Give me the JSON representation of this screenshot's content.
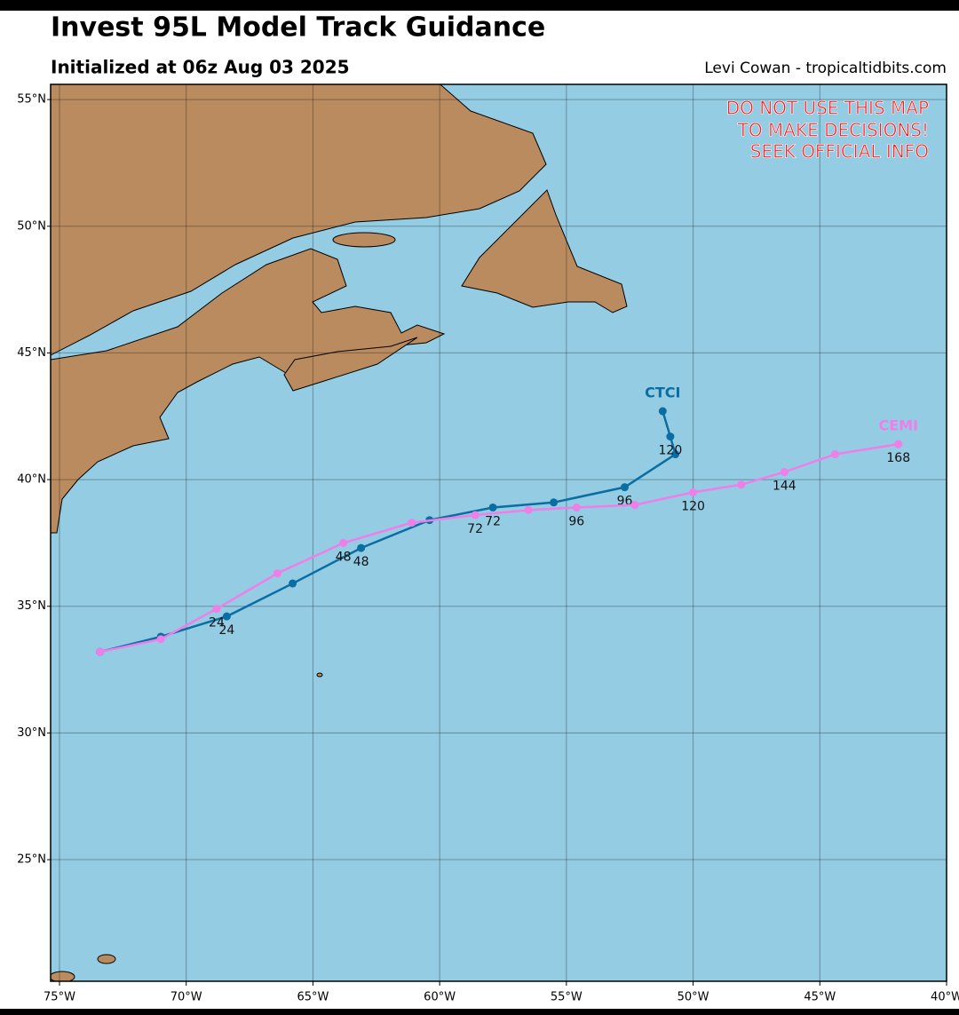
{
  "chart_data": {
    "type": "map",
    "title": "Invest 95L Model Track Guidance",
    "subtitle": "Initialized at 06z Aug 03 2025",
    "credit": "Levi Cowan - tropicaltidbits.com",
    "warning": [
      "DO NOT USE THIS MAP",
      "TO MAKE DECISIONS!",
      "SEEK OFFICIAL INFO"
    ],
    "xlim": [
      -75.35,
      -40
    ],
    "ylim": [
      20.2,
      55.6
    ],
    "xticks": [
      {
        "value": -75,
        "label": "75°W"
      },
      {
        "value": -70,
        "label": "70°W"
      },
      {
        "value": -65,
        "label": "65°W"
      },
      {
        "value": -60,
        "label": "60°W"
      },
      {
        "value": -55,
        "label": "55°W"
      },
      {
        "value": -50,
        "label": "50°W"
      },
      {
        "value": -45,
        "label": "45°W"
      },
      {
        "value": -40,
        "label": "40°W"
      }
    ],
    "yticks": [
      {
        "value": 25,
        "label": "25°N"
      },
      {
        "value": 30,
        "label": "30°N"
      },
      {
        "value": 35,
        "label": "35°N"
      },
      {
        "value": 40,
        "label": "40°N"
      },
      {
        "value": 45,
        "label": "45°N"
      },
      {
        "value": 50,
        "label": "50°N"
      },
      {
        "value": 55,
        "label": "55°N"
      }
    ],
    "grid": true,
    "series": [
      {
        "name": "CTCI",
        "color": "#0b6ea3",
        "lon": [
          -73.4,
          -71.0,
          -68.4,
          -65.8,
          -63.1,
          -60.4,
          -57.9,
          -55.5,
          -52.7,
          -50.7,
          -50.9,
          -51.2
        ],
        "lat": [
          33.2,
          33.8,
          34.6,
          35.9,
          37.3,
          38.4,
          38.9,
          39.1,
          39.7,
          41.0,
          41.7,
          42.7
        ],
        "hour_labels": [
          null,
          null,
          24,
          null,
          48,
          null,
          72,
          null,
          96,
          null,
          120,
          null
        ]
      },
      {
        "name": "CEMI",
        "color": "#f07ee8",
        "lon": [
          -73.4,
          -71.0,
          -68.8,
          -66.4,
          -63.8,
          -61.1,
          -58.6,
          -56.5,
          -54.6,
          -52.3,
          -50.0,
          -48.1,
          -46.4,
          -44.4,
          -41.9
        ],
        "lat": [
          33.2,
          33.7,
          34.9,
          36.3,
          37.5,
          38.3,
          38.6,
          38.8,
          38.9,
          39.0,
          39.5,
          39.8,
          40.3,
          41.0,
          41.4
        ],
        "hour_labels": [
          null,
          null,
          24,
          null,
          48,
          null,
          72,
          null,
          96,
          null,
          120,
          null,
          144,
          null,
          168
        ]
      }
    ]
  }
}
